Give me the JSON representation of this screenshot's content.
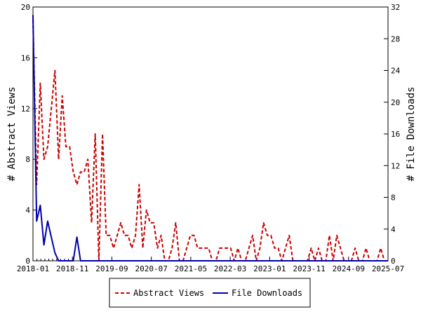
{
  "chart_data": {
    "type": "line",
    "title": "",
    "xlabel": "",
    "ylabel_left": "# Abstract Views",
    "ylabel_right": "# File Downloads",
    "ylim_left": [
      0,
      20
    ],
    "ylim_right": [
      0,
      32
    ],
    "yticks_left": [
      "0",
      "4",
      "8",
      "12",
      "16",
      "20"
    ],
    "yticks_right": [
      "0",
      "4",
      "8",
      "12",
      "16",
      "20",
      "24",
      "28",
      "32"
    ],
    "xticks": [
      "2018-01",
      "2018-11",
      "2019-09",
      "2020-07",
      "2021-05",
      "2022-03",
      "2023-01",
      "2023-11",
      "2024-09",
      "2025-07"
    ],
    "grid": false,
    "legend_position": "bottom-center",
    "series": [
      {
        "name": "Abstract Views",
        "axis": "left",
        "color": "#cc0000",
        "dash": "dashed",
        "values": [
          19,
          6,
          14,
          8,
          9,
          12,
          15,
          8,
          13,
          9,
          9,
          7,
          6,
          7,
          7,
          8,
          3,
          10,
          0,
          10,
          2,
          2,
          1,
          2,
          3,
          2,
          2,
          1,
          2,
          6,
          1,
          4,
          3,
          3,
          1,
          2,
          0,
          0,
          1,
          3,
          0,
          0,
          1,
          2,
          2,
          1,
          1,
          1,
          1,
          0,
          0,
          1,
          1,
          1,
          1,
          0,
          1,
          0,
          0,
          1,
          2,
          0,
          1,
          3,
          2,
          2,
          1,
          1,
          0,
          1,
          2,
          0,
          0,
          0,
          0,
          0,
          1,
          0,
          1,
          0,
          0,
          2,
          0,
          2,
          1,
          0,
          0,
          0,
          1,
          0,
          0,
          1,
          0,
          0,
          0,
          1,
          0,
          0
        ]
      },
      {
        "name": "File Downloads",
        "axis": "right",
        "color": "#0000aa",
        "dash": "solid",
        "values": [
          31,
          5,
          7,
          2,
          5,
          3,
          1,
          0,
          0,
          0,
          0,
          0,
          3,
          0,
          0,
          0,
          0,
          0,
          0,
          0,
          0,
          0,
          0,
          0,
          0,
          0,
          0,
          0,
          0,
          0,
          0,
          0,
          0,
          0,
          0,
          0,
          0,
          0,
          0,
          0,
          0,
          0,
          0,
          0,
          0,
          0,
          0,
          0,
          0,
          0,
          0,
          0,
          0,
          0,
          0,
          0,
          0,
          0,
          0,
          0,
          0,
          0,
          0,
          0,
          0,
          0,
          0,
          0,
          0,
          0,
          0,
          0,
          0,
          0,
          0,
          0,
          0,
          0,
          0,
          0,
          0,
          0,
          0,
          0,
          0,
          0,
          0,
          0,
          0,
          0,
          0,
          0,
          0,
          0,
          0,
          0,
          0,
          0
        ]
      }
    ]
  }
}
